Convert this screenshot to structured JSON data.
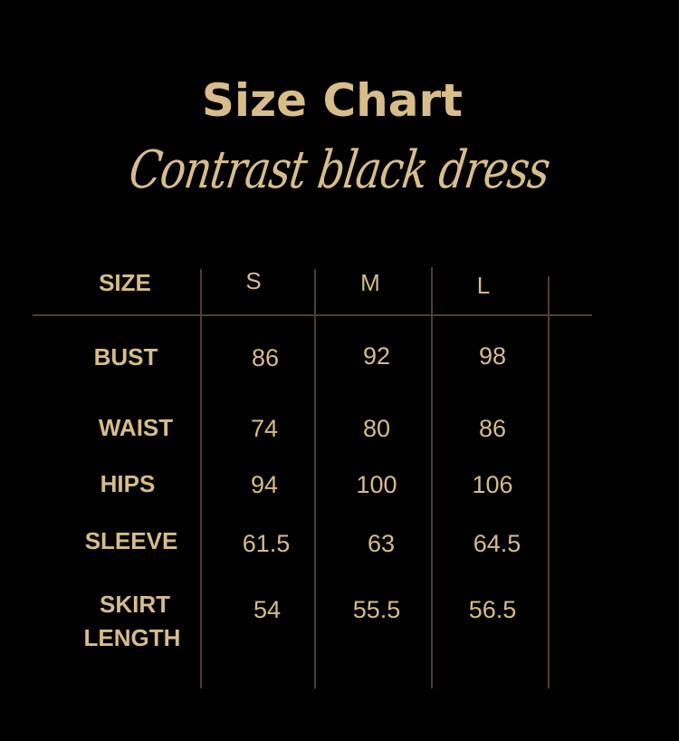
{
  "title": "Size Chart",
  "subtitle": "Contrast black dress",
  "colors": {
    "background": "#000000",
    "text": "#d6bc8a",
    "lines": "#4e3f33"
  },
  "table": {
    "header": {
      "label": "SIZE",
      "sizes": [
        "S",
        "M",
        "L"
      ]
    },
    "rows": [
      {
        "label": "BUST",
        "values": [
          "86",
          "92",
          "98"
        ]
      },
      {
        "label": "WAIST",
        "values": [
          "74",
          "80",
          "86"
        ]
      },
      {
        "label": "HIPS",
        "values": [
          "94",
          "100",
          "106"
        ]
      },
      {
        "label": "SLEEVE",
        "values": [
          "61.5",
          "63",
          "64.5"
        ]
      },
      {
        "label": "SKIRT LENGTH",
        "label_lines": [
          "SKIRT",
          "LENGTH"
        ],
        "values": [
          "54",
          "55.5",
          "56.5"
        ]
      }
    ]
  }
}
